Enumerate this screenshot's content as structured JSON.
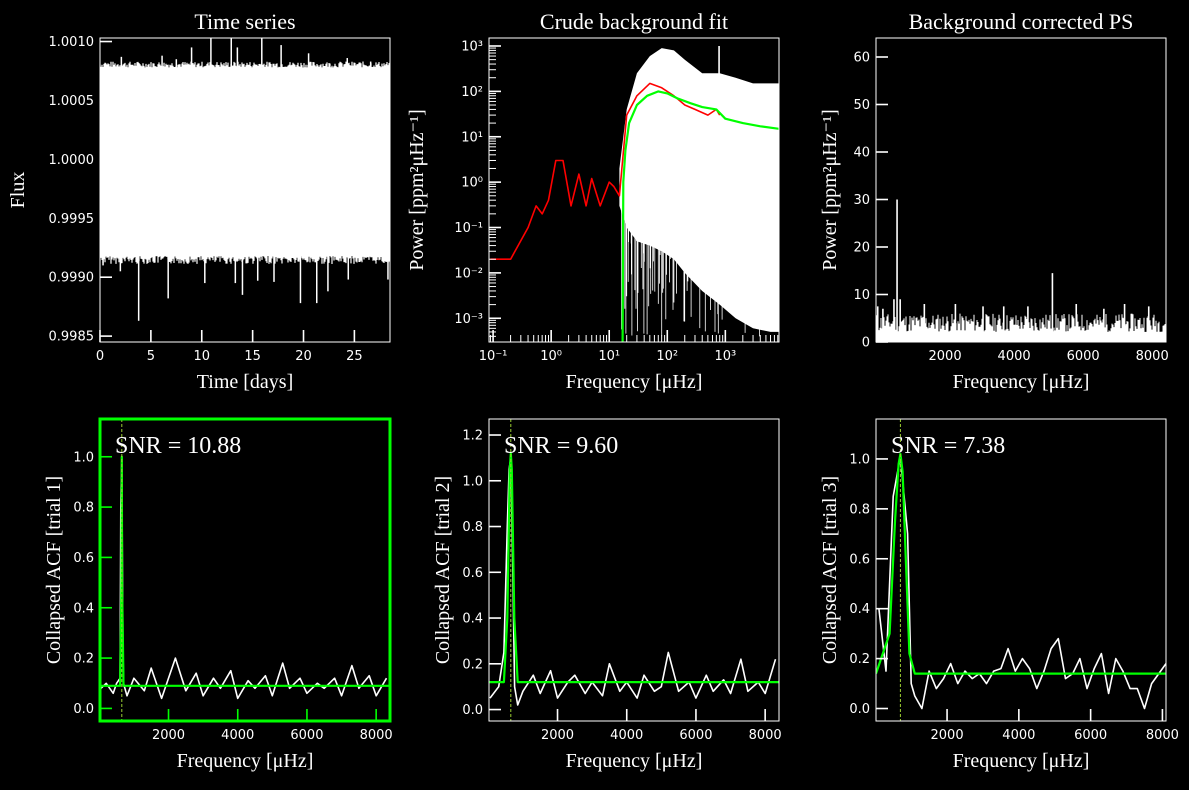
{
  "colors": {
    "background": "#000000",
    "foreground": "#ffffff",
    "green": "#00ff00",
    "red": "#ff0000",
    "selected_frame": "#00ff00"
  },
  "chart_data": [
    {
      "id": "time-series",
      "type": "line",
      "title": "Time series",
      "xlabel": "Time [days]",
      "ylabel": "Flux",
      "xlim": [
        0,
        28.5
      ],
      "ylim": [
        0.99845,
        1.00103
      ],
      "xticks": [
        0,
        5,
        10,
        15,
        20,
        25
      ],
      "xtick_labels": [
        "0",
        "5",
        "10",
        "15",
        "20",
        "25"
      ],
      "yticks": [
        0.9985,
        0.999,
        0.9995,
        1.0,
        1.0005,
        1.001
      ],
      "ytick_labels": [
        "0.9985",
        "0.9990",
        "0.9995",
        "1.0000",
        "1.0005",
        "1.0010"
      ],
      "series": [
        {
          "color": "#ffffff",
          "band": {
            "x": [
              0,
              28.5
            ],
            "lower": 0.99918,
            "upper": 1.00078
          },
          "spikes_up": [
            [
              0.5,
              1.00082
            ],
            [
              2.1,
              1.00087
            ],
            [
              6.1,
              1.00088
            ],
            [
              7.5,
              1.00085
            ],
            [
              9.0,
              1.00095
            ],
            [
              10.9,
              1.00117
            ],
            [
              12.9,
              1.00111
            ],
            [
              13.5,
              1.00095
            ],
            [
              15.9,
              1.00117
            ],
            [
              17.8,
              1.00097
            ],
            [
              20.5,
              1.0009
            ],
            [
              24.3,
              1.00086
            ],
            [
              26.6,
              1.00083
            ]
          ],
          "spikes_down": [
            [
              0.3,
              0.9991
            ],
            [
              2.0,
              0.99905
            ],
            [
              3.8,
              0.99863
            ],
            [
              6.7,
              0.99882
            ],
            [
              10.3,
              0.99895
            ],
            [
              13.3,
              0.99895
            ],
            [
              14.0,
              0.99885
            ],
            [
              15.5,
              0.99897
            ],
            [
              17.1,
              0.99896
            ],
            [
              19.7,
              0.99878
            ],
            [
              21.3,
              0.99878
            ],
            [
              22.4,
              0.99888
            ],
            [
              24.4,
              0.99898
            ],
            [
              28.3,
              0.99898
            ]
          ]
        }
      ]
    },
    {
      "id": "background-fit",
      "type": "line",
      "title": "Crude background fit",
      "xlabel": "Frequency [μHz]",
      "ylabel": "Power [ppm²μHz⁻¹]",
      "xscale": "log",
      "yscale": "log",
      "xlim": [
        0.085,
        8400
      ],
      "ylim": [
        0.0003,
        1500
      ],
      "xticks": [
        0.1,
        1,
        10,
        100,
        1000
      ],
      "xtick_labels": [
        "10⁻¹",
        "10⁰",
        "10¹",
        "10²",
        "10³"
      ],
      "yticks": [
        0.001,
        0.01,
        0.1,
        1,
        10,
        100,
        1000
      ],
      "ytick_labels": [
        "10⁻³",
        "10⁻²",
        "10⁻¹",
        "10⁰",
        "10¹",
        "10²",
        "10³"
      ],
      "series": [
        {
          "name": "power spectrum",
          "color": "#ffffff",
          "envelope": {
            "x": [
              15,
              20,
              30,
              50,
              80,
              130,
              200,
              400,
              800,
              1500,
              3000,
              6000,
              8400
            ],
            "upper": [
              2,
              40,
              250,
              600,
              900,
              800,
              500,
              250,
              250,
              200,
              150,
              150,
              150
            ],
            "lower": [
              0.3,
              0.1,
              0.05,
              0.04,
              0.03,
              0.02,
              0.01,
              0.004,
              0.002,
              0.001,
              0.0006,
              0.0005,
              0.0005
            ]
          },
          "peak": [
            780,
            1000
          ]
        },
        {
          "name": "binned spectrum",
          "color": "#ff0000",
          "x": [
            0.09,
            0.2,
            0.4,
            0.55,
            0.7,
            0.9,
            1.2,
            1.6,
            2.2,
            3,
            4,
            5,
            7,
            10,
            12,
            15,
            20,
            30,
            50,
            80,
            130,
            200,
            300,
            500,
            700,
            800
          ],
          "y": [
            0.02,
            0.02,
            0.1,
            0.3,
            0.2,
            0.4,
            3,
            3,
            0.3,
            1.5,
            0.3,
            1.2,
            0.3,
            1,
            0.8,
            0.5,
            30,
            80,
            150,
            120,
            80,
            50,
            40,
            30,
            40,
            30
          ]
        },
        {
          "name": "background model",
          "color": "#00ff00",
          "x": [
            17,
            17.5,
            19,
            22,
            30,
            45,
            70,
            100,
            150,
            250,
            400,
            700,
            1000,
            2000,
            4000,
            8400
          ],
          "y": [
            0.0003,
            1,
            5,
            20,
            50,
            80,
            100,
            90,
            70,
            55,
            45,
            40,
            25,
            20,
            17,
            15
          ]
        }
      ]
    },
    {
      "id": "background-corrected",
      "type": "line",
      "title": "Background corrected PS",
      "xlabel": "Frequency [μHz]",
      "ylabel": "Power [ppm²μHz⁻¹]",
      "xlim": [
        0,
        8400
      ],
      "ylim": [
        0,
        64
      ],
      "xticks": [
        2000,
        4000,
        6000,
        8000
      ],
      "xtick_labels": [
        "2000",
        "4000",
        "6000",
        "8000"
      ],
      "yticks": [
        0,
        10,
        20,
        30,
        40,
        50,
        60
      ],
      "ytick_labels": [
        "0",
        "10",
        "20",
        "30",
        "40",
        "50",
        "60"
      ],
      "series": [
        {
          "color": "#ffffff",
          "noise_top": 6,
          "peaks": [
            [
              50,
              7.5
            ],
            [
              200,
              7
            ],
            [
              520,
              9
            ],
            [
              610,
              30
            ],
            [
              700,
              9
            ],
            [
              1400,
              8
            ],
            [
              2300,
              8
            ],
            [
              3100,
              7.5
            ],
            [
              3700,
              7.5
            ],
            [
              4400,
              7.5
            ],
            [
              5110,
              14.5
            ],
            [
              5800,
              8
            ],
            [
              6600,
              7
            ],
            [
              7200,
              8
            ],
            [
              7900,
              7.5
            ]
          ]
        }
      ]
    },
    {
      "id": "acf-trial-1",
      "type": "line",
      "title": "",
      "xlabel": "Frequency [μHz]",
      "ylabel": "Collapsed ACF [trial 1]",
      "annotation": "SNR = 10.88",
      "highlighted": true,
      "xlim": [
        20,
        8400
      ],
      "ylim": [
        -0.05,
        1.15
      ],
      "xticks": [
        2000,
        4000,
        6000,
        8000
      ],
      "xtick_labels": [
        "2000",
        "4000",
        "6000",
        "8000"
      ],
      "yticks": [
        0,
        0.2,
        0.4,
        0.6,
        0.8,
        1.0
      ],
      "ytick_labels": [
        "0.0",
        "0.2",
        "0.4",
        "0.6",
        "0.8",
        "1.0"
      ],
      "vline": 650,
      "series": [
        {
          "name": "collapsed ACF",
          "color": "#ffffff",
          "x": [
            50,
            200,
            400,
            500,
            600,
            620,
            650,
            680,
            700,
            800,
            1000,
            1300,
            1500,
            1800,
            2000,
            2200,
            2500,
            2800,
            3000,
            3300,
            3500,
            3800,
            4000,
            4300,
            4500,
            4800,
            5000,
            5300,
            5500,
            5800,
            6000,
            6300,
            6500,
            6800,
            7000,
            7300,
            7500,
            7800,
            8000,
            8300
          ],
          "y": [
            0.08,
            0.1,
            0.06,
            0.1,
            0.12,
            0.8,
            1.0,
            0.3,
            0.1,
            0.05,
            0.12,
            0.07,
            0.16,
            0.04,
            0.12,
            0.2,
            0.07,
            0.14,
            0.05,
            0.12,
            0.08,
            0.15,
            0.04,
            0.11,
            0.08,
            0.13,
            0.05,
            0.18,
            0.08,
            0.12,
            0.06,
            0.1,
            0.08,
            0.12,
            0.05,
            0.17,
            0.08,
            0.13,
            0.05,
            0.12
          ]
        },
        {
          "name": "fit",
          "color": "#00ff00",
          "x": [
            20,
            600,
            640,
            650,
            660,
            700,
            8400
          ],
          "y": [
            0.09,
            0.09,
            0.5,
            1.0,
            0.5,
            0.09,
            0.09
          ]
        }
      ]
    },
    {
      "id": "acf-trial-2",
      "type": "line",
      "title": "",
      "xlabel": "Frequency [μHz]",
      "ylabel": "Collapsed ACF [trial 2]",
      "annotation": "SNR = 9.60",
      "highlighted": false,
      "xlim": [
        20,
        8400
      ],
      "ylim": [
        -0.05,
        1.27
      ],
      "xticks": [
        2000,
        4000,
        6000,
        8000
      ],
      "xtick_labels": [
        "2000",
        "4000",
        "6000",
        "8000"
      ],
      "yticks": [
        0,
        0.2,
        0.4,
        0.6,
        0.8,
        1.0,
        1.2
      ],
      "ytick_labels": [
        "0.0",
        "0.2",
        "0.4",
        "0.6",
        "0.8",
        "1.0",
        "1.2"
      ],
      "vline": 650,
      "series": [
        {
          "name": "collapsed ACF",
          "color": "#ffffff",
          "x": [
            50,
            300,
            450,
            550,
            600,
            650,
            700,
            760,
            850,
            1000,
            1300,
            1500,
            1800,
            2000,
            2300,
            2500,
            2800,
            3000,
            3300,
            3500,
            3800,
            4000,
            4300,
            4500,
            4800,
            5000,
            5200,
            5500,
            5800,
            6000,
            6300,
            6500,
            6800,
            7000,
            7300,
            7500,
            7800,
            8000,
            8300
          ],
          "y": [
            0.05,
            0.1,
            0.25,
            0.8,
            1.05,
            1.1,
            0.7,
            0.1,
            0.02,
            0.08,
            0.15,
            0.07,
            0.17,
            0.05,
            0.12,
            0.15,
            0.07,
            0.12,
            0.06,
            0.2,
            0.08,
            0.12,
            0.05,
            0.15,
            0.08,
            0.1,
            0.25,
            0.08,
            0.12,
            0.05,
            0.15,
            0.08,
            0.13,
            0.07,
            0.22,
            0.08,
            0.12,
            0.07,
            0.22
          ]
        },
        {
          "name": "fit",
          "color": "#00ff00",
          "x": [
            20,
            450,
            550,
            620,
            650,
            680,
            750,
            850,
            8400
          ],
          "y": [
            0.12,
            0.12,
            0.4,
            1.05,
            1.12,
            1.05,
            0.4,
            0.12,
            0.12
          ]
        }
      ]
    },
    {
      "id": "acf-trial-3",
      "type": "line",
      "title": "",
      "xlabel": "Frequency [μHz]",
      "ylabel": "Collapsed ACF [trial 3]",
      "annotation": "SNR = 7.38",
      "highlighted": false,
      "xlim": [
        20,
        8100
      ],
      "ylim": [
        -0.05,
        1.16
      ],
      "xticks": [
        2000,
        4000,
        6000,
        8000
      ],
      "xtick_labels": [
        "2000",
        "4000",
        "6000",
        "8000"
      ],
      "yticks": [
        0,
        0.2,
        0.4,
        0.6,
        0.8,
        1.0
      ],
      "ytick_labels": [
        "0.0",
        "0.2",
        "0.4",
        "0.6",
        "0.8",
        "1.0"
      ],
      "vline": 700,
      "series": [
        {
          "name": "collapsed ACF",
          "color": "#ffffff",
          "x": [
            100,
            300,
            500,
            700,
            900,
            1000,
            1100,
            1300,
            1500,
            1700,
            1900,
            2100,
            2300,
            2500,
            2700,
            2900,
            3100,
            3300,
            3500,
            3700,
            3900,
            4100,
            4300,
            4500,
            4700,
            4900,
            5100,
            5300,
            5500,
            5700,
            5900,
            6100,
            6300,
            6500,
            6700,
            6900,
            7100,
            7300,
            7500,
            7700,
            7900,
            8100
          ],
          "y": [
            0.4,
            0.15,
            0.85,
            1.01,
            0.7,
            0.1,
            0.05,
            0.0,
            0.15,
            0.08,
            0.12,
            0.18,
            0.1,
            0.15,
            0.12,
            0.14,
            0.1,
            0.15,
            0.16,
            0.24,
            0.15,
            0.2,
            0.16,
            0.08,
            0.15,
            0.24,
            0.28,
            0.12,
            0.14,
            0.2,
            0.08,
            0.16,
            0.22,
            0.06,
            0.2,
            0.15,
            0.08,
            0.08,
            0.0,
            0.1,
            0.14,
            0.18
          ]
        },
        {
          "name": "fit",
          "color": "#00ff00",
          "x": [
            20,
            400,
            550,
            650,
            700,
            760,
            850,
            950,
            1100,
            8100
          ],
          "y": [
            0.14,
            0.3,
            0.75,
            0.98,
            1.02,
            0.95,
            0.6,
            0.22,
            0.14,
            0.14
          ]
        }
      ]
    }
  ]
}
